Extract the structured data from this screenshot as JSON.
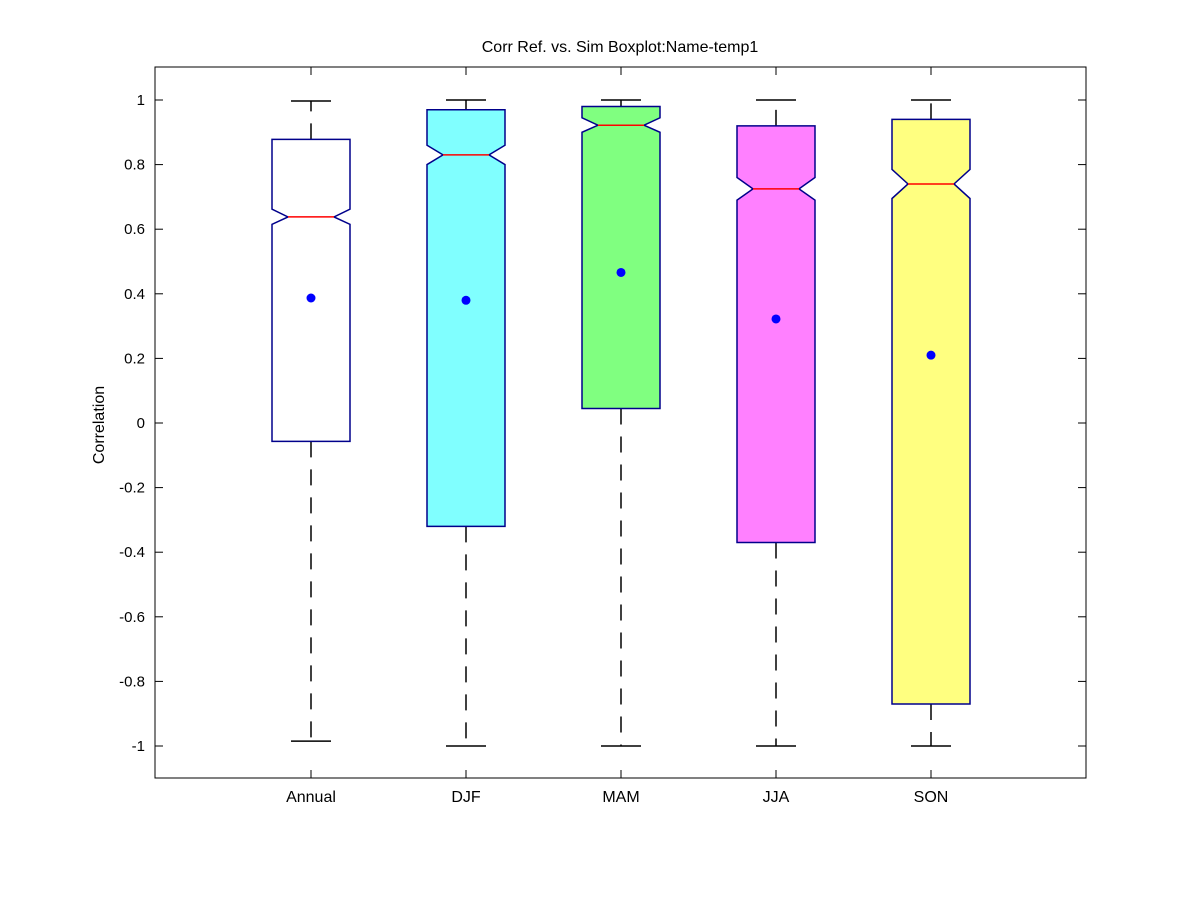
{
  "chart_data": {
    "type": "boxplot",
    "title": "Corr Ref. vs. Sim Boxplot:Name-temp1",
    "xlabel": "",
    "ylabel": "Correlation",
    "ylim": [
      -1.1,
      1.1
    ],
    "yticks": [
      1,
      0.8,
      0.6,
      0.4,
      0.2,
      0,
      -0.2,
      -0.4,
      -0.6,
      -0.8,
      -1
    ],
    "ytick_labels": [
      "1",
      "0.8",
      "0.6",
      "0.4",
      "0.2",
      "0",
      "-0.2",
      "-0.4",
      "-0.6",
      "-0.8",
      "-1"
    ],
    "grid": false,
    "notched": true,
    "categories": [
      "Annual",
      "DJF",
      "MAM",
      "JJA",
      "SON"
    ],
    "boxes": [
      {
        "category": "Annual",
        "whisker_low": -0.985,
        "q1": -0.057,
        "median": 0.638,
        "q3": 0.878,
        "whisker_high": 0.997,
        "notch_low": 0.615,
        "notch_high": 0.662,
        "mean": 0.387,
        "fill": "#ffffff"
      },
      {
        "category": "DJF",
        "whisker_low": -1.0,
        "q1": -0.32,
        "median": 0.83,
        "q3": 0.97,
        "whisker_high": 1.0,
        "notch_low": 0.8,
        "notch_high": 0.86,
        "mean": 0.38,
        "fill": "#80ffff"
      },
      {
        "category": "MAM",
        "whisker_low": -1.0,
        "q1": 0.045,
        "median": 0.922,
        "q3": 0.98,
        "whisker_high": 1.0,
        "notch_low": 0.9,
        "notch_high": 0.945,
        "mean": 0.466,
        "fill": "#80ff80"
      },
      {
        "category": "JJA",
        "whisker_low": -1.0,
        "q1": -0.37,
        "median": 0.725,
        "q3": 0.92,
        "whisker_high": 1.0,
        "notch_low": 0.69,
        "notch_high": 0.76,
        "mean": 0.322,
        "fill": "#ff80ff"
      },
      {
        "category": "SON",
        "whisker_low": -1.0,
        "q1": -0.87,
        "median": 0.74,
        "q3": 0.94,
        "whisker_high": 1.0,
        "notch_low": 0.695,
        "notch_high": 0.785,
        "mean": 0.21,
        "fill": "#ffff80"
      }
    ],
    "colors": {
      "box_edge": "#00008b",
      "median": "#ff0000",
      "mean_marker": "#0000ff",
      "whisker": "#000000",
      "axes": "#000000"
    }
  }
}
